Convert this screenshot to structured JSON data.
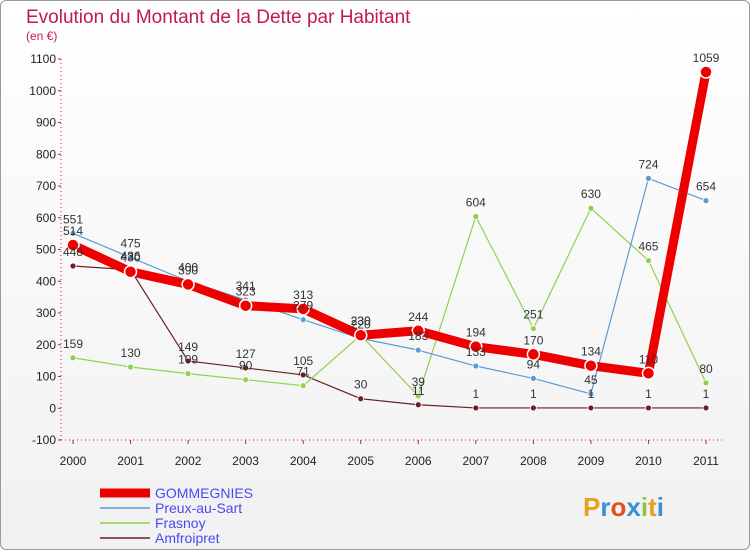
{
  "chart_data": {
    "type": "line",
    "title": "Evolution du Montant de la Dette par Habitant",
    "subtitle": "(en €)",
    "x": [
      "2000",
      "2001",
      "2002",
      "2003",
      "2004",
      "2005",
      "2006",
      "2007",
      "2008",
      "2009",
      "2010",
      "2011"
    ],
    "ylim": [
      -100,
      1100
    ],
    "yticks": [
      -100,
      0,
      100,
      200,
      300,
      400,
      500,
      600,
      700,
      800,
      900,
      1000,
      1100
    ],
    "grid": false,
    "legend_position": "bottom-left",
    "series": [
      {
        "name": "GOMMEGNIES",
        "color": "#ee0000",
        "values": [
          514,
          430,
          390,
          323,
          313,
          230,
          244,
          194,
          170,
          134,
          110,
          1059
        ]
      },
      {
        "name": "Preux-au-Sart",
        "color": "#5a9bd5",
        "values": [
          551,
          475,
          400,
          341,
          279,
          220,
          183,
          133,
          94,
          45,
          724,
          654
        ]
      },
      {
        "name": "Frasnoy",
        "color": "#8fd14f",
        "values": [
          159,
          130,
          109,
          90,
          71,
          230,
          39,
          604,
          251,
          630,
          465,
          80
        ]
      },
      {
        "name": "Amfroipret",
        "color": "#6b1f24",
        "values": [
          448,
          436,
          149,
          127,
          105,
          30,
          11,
          1,
          1,
          1,
          1,
          1
        ]
      }
    ]
  },
  "branding": {
    "logo_text": "Proxiti",
    "logo_colors": [
      "#e8a020",
      "#3a8fd8",
      "#e05020",
      "#3a8fd8",
      "#8cc63f",
      "#e8a020",
      "#3a8fd8"
    ]
  }
}
